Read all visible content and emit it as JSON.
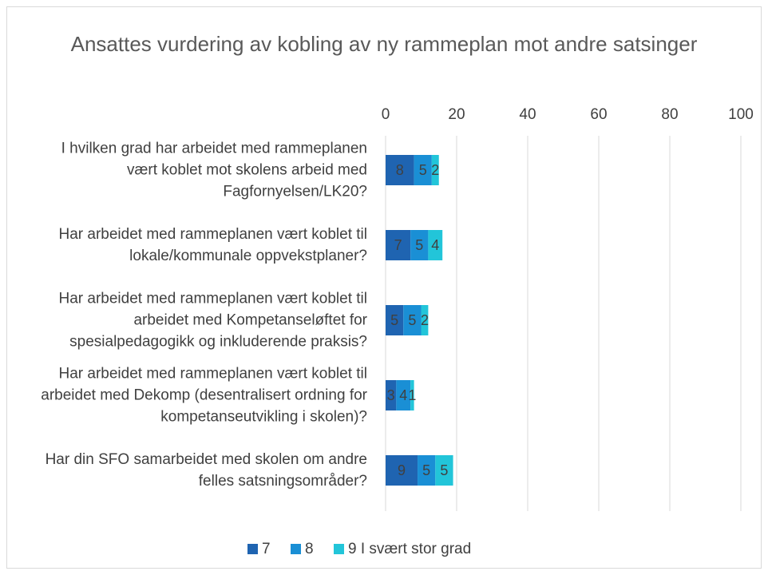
{
  "chart_data": {
    "type": "stacked_bar_horizontal",
    "title": "Ansattes vurdering av kobling av ny rammeplan mot andre satsinger",
    "categories": [
      "I hvilken grad har arbeidet med rammeplanen vært koblet mot skolens arbeid med Fagfornyelsen/LK20?",
      "Har arbeidet med rammeplanen vært koblet til lokale/kommunale oppvekstplaner?",
      "Har arbeidet med rammeplanen vært koblet til arbeidet med Kompetanseløftet for spesialpedagogikk og inkluderende praksis?",
      "Har arbeidet med rammeplanen vært koblet til arbeidet med Dekomp (desentralisert ordning for kompetanseutvikling i skolen)?",
      "Har din SFO samarbeidet med skolen om andre felles satsningsområder?"
    ],
    "series": [
      {
        "name": "7",
        "color": "#1f64b1",
        "values": [
          8,
          7,
          5,
          3,
          9
        ]
      },
      {
        "name": "8",
        "color": "#1a8fd5",
        "values": [
          5,
          5,
          5,
          4,
          5
        ]
      },
      {
        "name": "9 I svært stor grad",
        "color": "#22c5d9",
        "values": [
          2,
          4,
          2,
          1,
          5
        ]
      }
    ],
    "xlim": [
      0,
      100
    ],
    "xticks": [
      0,
      20,
      40,
      60,
      80,
      100
    ],
    "grid": true,
    "legend": "bottom"
  }
}
